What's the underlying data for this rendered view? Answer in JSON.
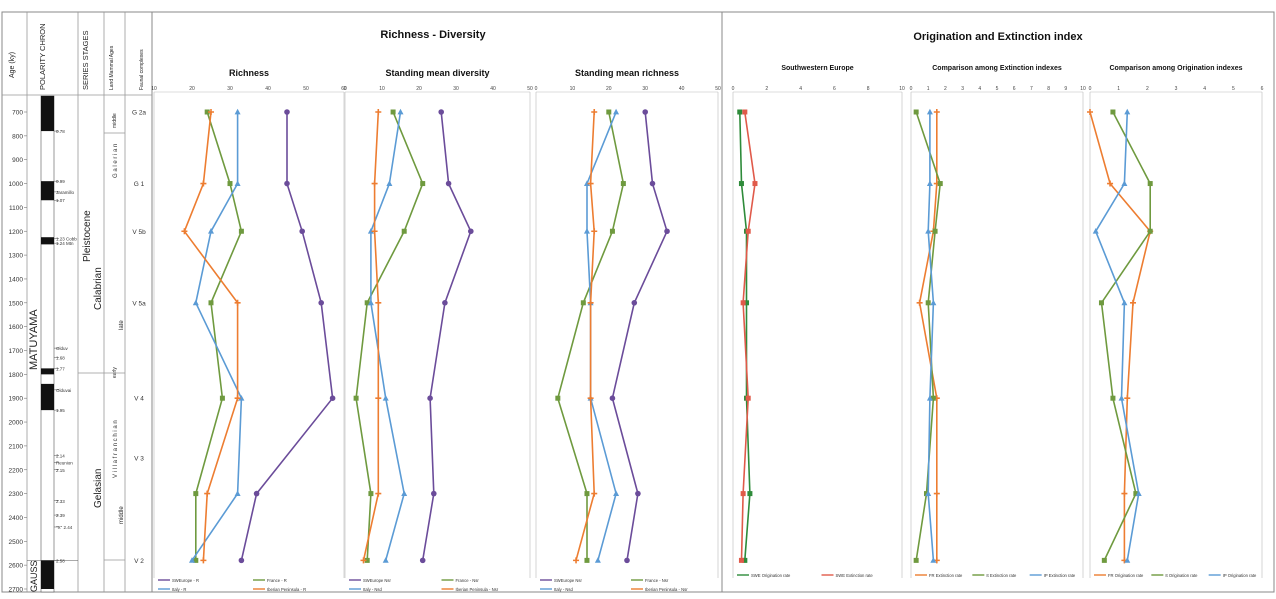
{
  "strat": {
    "age_label": "Age (ky)",
    "polarity_label": "POLARITY CHRON",
    "series_label": "SERIES STAGES",
    "lma_label": "Land Mammal Ages",
    "faunal_label": "Faunal complexes",
    "ages": [
      700,
      800,
      900,
      1000,
      1100,
      1200,
      1300,
      1400,
      1500,
      1600,
      1700,
      1800,
      1900,
      2000,
      2100,
      2200,
      2300,
      2400,
      2500,
      2600,
      2700
    ],
    "matuyama": "MATUYAMA",
    "gauss": "GAUSS",
    "pleistocene": "Pleistocene",
    "calabrian": "Calabrian",
    "gelasian": "Gelasian",
    "middle_top": "middle",
    "late": "late",
    "early": "early",
    "middle_bottom": "middle",
    "galerian": "G a l e r i a n",
    "villafranchian": "V i l l a f r a n c h i a n",
    "polarity_notes": [
      {
        "label": "0.78",
        "age": 780
      },
      {
        "label": "0.99",
        "age": 990
      },
      {
        "label": "Jaramillo",
        "age": 1035
      },
      {
        "label": "1.07",
        "age": 1070
      },
      {
        "label": "1.23 Cobb",
        "age": 1230
      },
      {
        "label": "1.24 Mtn",
        "age": 1250
      },
      {
        "label": "Olduv",
        "age": 1690
      },
      {
        "label": "1.68",
        "age": 1730
      },
      {
        "label": "1.77",
        "age": 1775
      },
      {
        "label": "Olduvai",
        "age": 1865
      },
      {
        "label": "1.95",
        "age": 1950
      },
      {
        "label": "2.14",
        "age": 2140
      },
      {
        "label": "Reunion",
        "age": 2170
      },
      {
        "label": "2.15",
        "age": 2200
      },
      {
        "label": "2.33",
        "age": 2330
      },
      {
        "label": "2.39",
        "age": 2390
      },
      {
        "label": "\"X\" 2.44",
        "age": 2440
      },
      {
        "label": "2.58",
        "age": 2580
      }
    ],
    "faunal_units": [
      {
        "label": "G 2a",
        "age": 700
      },
      {
        "label": "G 1",
        "age": 1000
      },
      {
        "label": "V 5b",
        "age": 1200
      },
      {
        "label": "V 5a",
        "age": 1500
      },
      {
        "label": "V 4",
        "age": 1900
      },
      {
        "label": "V 3",
        "age": 2150
      },
      {
        "label": "V 2",
        "age": 2580
      }
    ]
  },
  "section_titles": {
    "richness_diversity": "Richness - Diversity",
    "origination_extinction": "Origination and Extinction index"
  },
  "colors": {
    "purple": "#6b4c9a",
    "green": "#6f9a3f",
    "blue": "#5b9bd5",
    "orange": "#ed7d31",
    "dark_green": "#2e8b3a",
    "red": "#e05a4a"
  },
  "chart_data": [
    {
      "type": "line",
      "title": "Richness",
      "xlim": [
        10,
        60
      ],
      "xticks": [
        10,
        20,
        30,
        40,
        50,
        60
      ],
      "y_axis": "Age (ky)",
      "series": [
        {
          "name": "SWEurope - R",
          "color": "purple",
          "x": [
            45,
            45,
            49,
            54,
            57,
            37,
            33
          ],
          "ages": [
            700,
            1000,
            1200,
            1500,
            1900,
            2300,
            2580
          ]
        },
        {
          "name": "France - R",
          "color": "green",
          "x": [
            24,
            30,
            33,
            25,
            28,
            21,
            21
          ],
          "ages": [
            700,
            1000,
            1200,
            1500,
            1900,
            2300,
            2580
          ]
        },
        {
          "name": "Italy - R",
          "color": "blue",
          "x": [
            32,
            32,
            25,
            21,
            33,
            32,
            20
          ],
          "ages": [
            700,
            1000,
            1200,
            1500,
            1900,
            2300,
            2580
          ]
        },
        {
          "name": "Iberian Peninsula - R",
          "color": "orange",
          "x": [
            25,
            23,
            18,
            32,
            32,
            24,
            23
          ],
          "ages": [
            700,
            1000,
            1200,
            1500,
            1900,
            2300,
            2580
          ]
        }
      ]
    },
    {
      "type": "line",
      "title": "Standing mean diversity",
      "xlim": [
        0,
        50
      ],
      "xticks": [
        0,
        10,
        20,
        30,
        40,
        50
      ],
      "y_axis": "Age (ky)",
      "series": [
        {
          "name": "SWEurope Nsr",
          "color": "purple",
          "x": [
            26,
            28,
            34,
            27,
            23,
            24,
            21
          ],
          "ages": [
            700,
            1000,
            1200,
            1500,
            1900,
            2300,
            2580
          ]
        },
        {
          "name": "France - Nsr",
          "color": "green",
          "x": [
            13,
            21,
            16,
            6,
            3,
            7,
            6
          ],
          "ages": [
            700,
            1000,
            1200,
            1500,
            1900,
            2300,
            2580
          ]
        },
        {
          "name": "Italy - Nsd",
          "color": "blue",
          "x": [
            15,
            12,
            7,
            7,
            11,
            16,
            11
          ],
          "ages": [
            700,
            1000,
            1200,
            1500,
            1900,
            2300,
            2580
          ]
        },
        {
          "name": "Iberian Peninsula - Nsr",
          "color": "orange",
          "x": [
            9,
            8,
            8,
            9,
            9,
            9,
            5
          ],
          "ages": [
            700,
            1000,
            1200,
            1500,
            1900,
            2300,
            2580
          ]
        }
      ]
    },
    {
      "type": "line",
      "title": "Standing mean richness",
      "xlim": [
        0,
        50
      ],
      "xticks": [
        0,
        10,
        20,
        30,
        40,
        50
      ],
      "y_axis": "Age (ky)",
      "series": [
        {
          "name": "SWEurope Nsr",
          "color": "purple",
          "x": [
            30,
            32,
            36,
            27,
            21,
            28,
            25
          ],
          "ages": [
            700,
            1000,
            1200,
            1500,
            1900,
            2300,
            2580
          ]
        },
        {
          "name": "France - Nsr",
          "color": "green",
          "x": [
            20,
            24,
            21,
            13,
            6,
            14,
            14
          ],
          "ages": [
            700,
            1000,
            1200,
            1500,
            1900,
            2300,
            2580
          ]
        },
        {
          "name": "Italy - Nsd",
          "color": "blue",
          "x": [
            22,
            14,
            14,
            15,
            15,
            22,
            17
          ],
          "ages": [
            700,
            1000,
            1200,
            1500,
            1900,
            2300,
            2580
          ]
        },
        {
          "name": "Iberian Peninsula - Nsr",
          "color": "orange",
          "x": [
            16,
            15,
            16,
            15,
            15,
            16,
            11
          ],
          "ages": [
            700,
            1000,
            1200,
            1500,
            1900,
            2300,
            2580
          ]
        }
      ]
    },
    {
      "type": "line",
      "title": "Southwestern Europe",
      "xlim": [
        0,
        10
      ],
      "xticks": [
        0,
        2,
        4,
        6,
        8,
        10
      ],
      "y_axis": "Age (ky)",
      "series": [
        {
          "name": "SWE Origination rate",
          "color": "dark_green",
          "x": [
            0.4,
            0.5,
            0.8,
            0.8,
            0.8,
            1.0,
            0.7
          ],
          "ages": [
            700,
            1000,
            1200,
            1500,
            1900,
            2300,
            2580
          ]
        },
        {
          "name": "SWE Extinction rate",
          "color": "red",
          "x": [
            0.7,
            1.3,
            0.9,
            0.6,
            0.9,
            0.6,
            0.5
          ],
          "ages": [
            700,
            1000,
            1200,
            1500,
            1900,
            2300,
            2580
          ]
        }
      ]
    },
    {
      "type": "line",
      "title": "Comparison among Extinction indexes",
      "xlim": [
        0,
        10
      ],
      "xticks": [
        0,
        1,
        2,
        3,
        4,
        5,
        6,
        7,
        8,
        9,
        10
      ],
      "y_axis": "Age (ky)",
      "series": [
        {
          "name": "FR Extinction rate",
          "color": "orange",
          "x": [
            1.5,
            1.5,
            1.3,
            0.5,
            1.5,
            1.5,
            1.5
          ],
          "ages": [
            700,
            1000,
            1200,
            1500,
            1900,
            2300,
            2580
          ]
        },
        {
          "name": "It Extinction rate",
          "color": "green",
          "x": [
            0.3,
            1.7,
            1.4,
            1.0,
            1.3,
            0.9,
            0.3
          ],
          "ages": [
            700,
            1000,
            1200,
            1500,
            1900,
            2300,
            2580
          ]
        },
        {
          "name": "IP Extinction rate",
          "color": "blue",
          "x": [
            1.1,
            1.1,
            1.0,
            1.3,
            1.1,
            1.0,
            1.3
          ],
          "ages": [
            700,
            1000,
            1200,
            1500,
            1900,
            2300,
            2580
          ]
        }
      ]
    },
    {
      "type": "line",
      "title": "Comparison among Origination indexes",
      "xlim": [
        0,
        6
      ],
      "xticks": [
        0,
        1,
        2,
        3,
        4,
        5,
        6
      ],
      "y_axis": "Age (ky)",
      "series": [
        {
          "name": "FR Origination rate",
          "color": "orange",
          "x": [
            0,
            0.7,
            2.1,
            1.5,
            1.3,
            1.2,
            1.2
          ],
          "ages": [
            700,
            1000,
            1200,
            1500,
            1900,
            2300,
            2580
          ]
        },
        {
          "name": "It Origination rate",
          "color": "green",
          "x": [
            0.8,
            2.1,
            2.1,
            0.4,
            0.8,
            1.6,
            0.5
          ],
          "ages": [
            700,
            1000,
            1200,
            1500,
            1900,
            2300,
            2580
          ]
        },
        {
          "name": "IP Origination rate",
          "color": "blue",
          "x": [
            1.3,
            1.2,
            0.2,
            1.2,
            1.1,
            1.7,
            1.3
          ],
          "ages": [
            700,
            1000,
            1200,
            1500,
            1900,
            2300,
            2580
          ]
        }
      ]
    }
  ]
}
